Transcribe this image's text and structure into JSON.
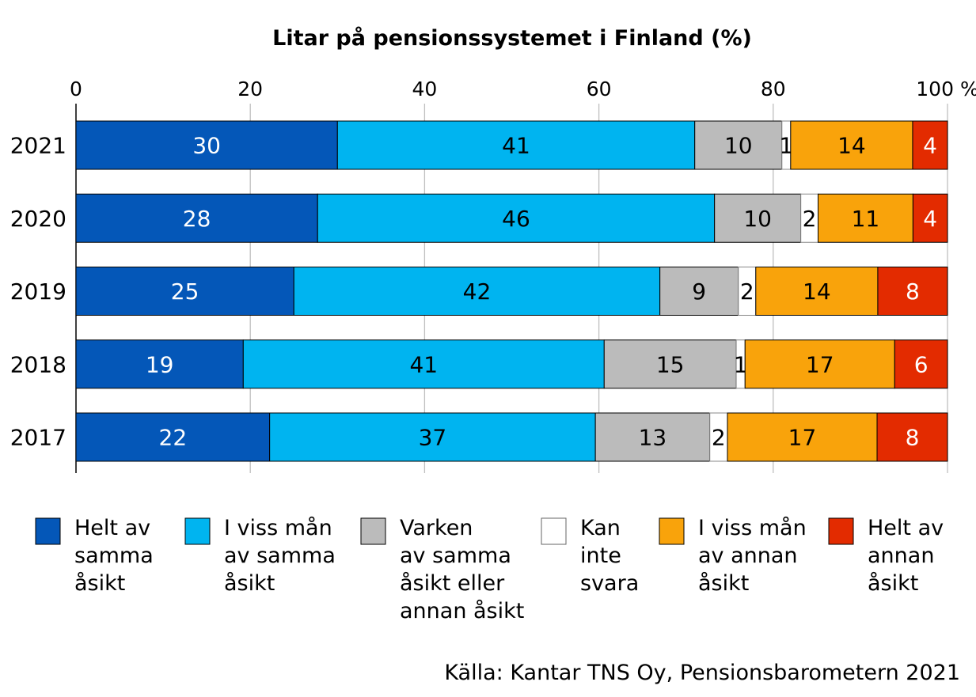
{
  "chart_data": {
    "type": "bar",
    "orientation": "horizontal",
    "stacked": true,
    "title": "Litar på pensionssystemet i Finland (%)",
    "x_tick_labels": [
      "0",
      "20",
      "40",
      "60",
      "80",
      "100 %"
    ],
    "xlim": [
      0,
      100
    ],
    "grid": true,
    "legend_position": "bottom",
    "categories": [
      "2021",
      "2020",
      "2019",
      "2018",
      "2017"
    ],
    "series": [
      {
        "name": "Helt av samma åsikt",
        "color": "#0457B8",
        "label_color": "#ffffff",
        "values": [
          30,
          28,
          25,
          19,
          22
        ]
      },
      {
        "name": "I viss mån av samma åsikt",
        "color": "#00B4F0",
        "label_color": "#000000",
        "values": [
          41,
          46,
          42,
          41,
          37
        ]
      },
      {
        "name": "Varken av samma åsikt eller annan åsikt",
        "color": "#BBBBBB",
        "label_color": "#000000",
        "values": [
          10,
          10,
          9,
          15,
          13
        ]
      },
      {
        "name": "Kan inte svara",
        "color": "#FFFFFF",
        "label_color": "#000000",
        "values": [
          1,
          2,
          2,
          1,
          2
        ]
      },
      {
        "name": "I viss mån av annan åsikt",
        "color": "#F9A30B",
        "label_color": "#000000",
        "values": [
          14,
          11,
          14,
          17,
          17
        ]
      },
      {
        "name": "Helt av annan åsikt",
        "color": "#E32B00",
        "label_color": "#ffffff",
        "values": [
          4,
          4,
          8,
          6,
          8
        ]
      }
    ],
    "legend_lines": [
      [
        "Helt av",
        "samma",
        "åsikt"
      ],
      [
        "I viss mån",
        "av samma",
        "åsikt"
      ],
      [
        "Varken",
        "av samma",
        "åsikt eller",
        "annan åsikt"
      ],
      [
        "Kan",
        "inte",
        "svara"
      ],
      [
        "I viss mån",
        "av annan",
        "åsikt"
      ],
      [
        "Helt av",
        "annan",
        "åsikt"
      ]
    ],
    "source": "Källa: Kantar TNS Oy, Pensionsbarometern 2021"
  }
}
